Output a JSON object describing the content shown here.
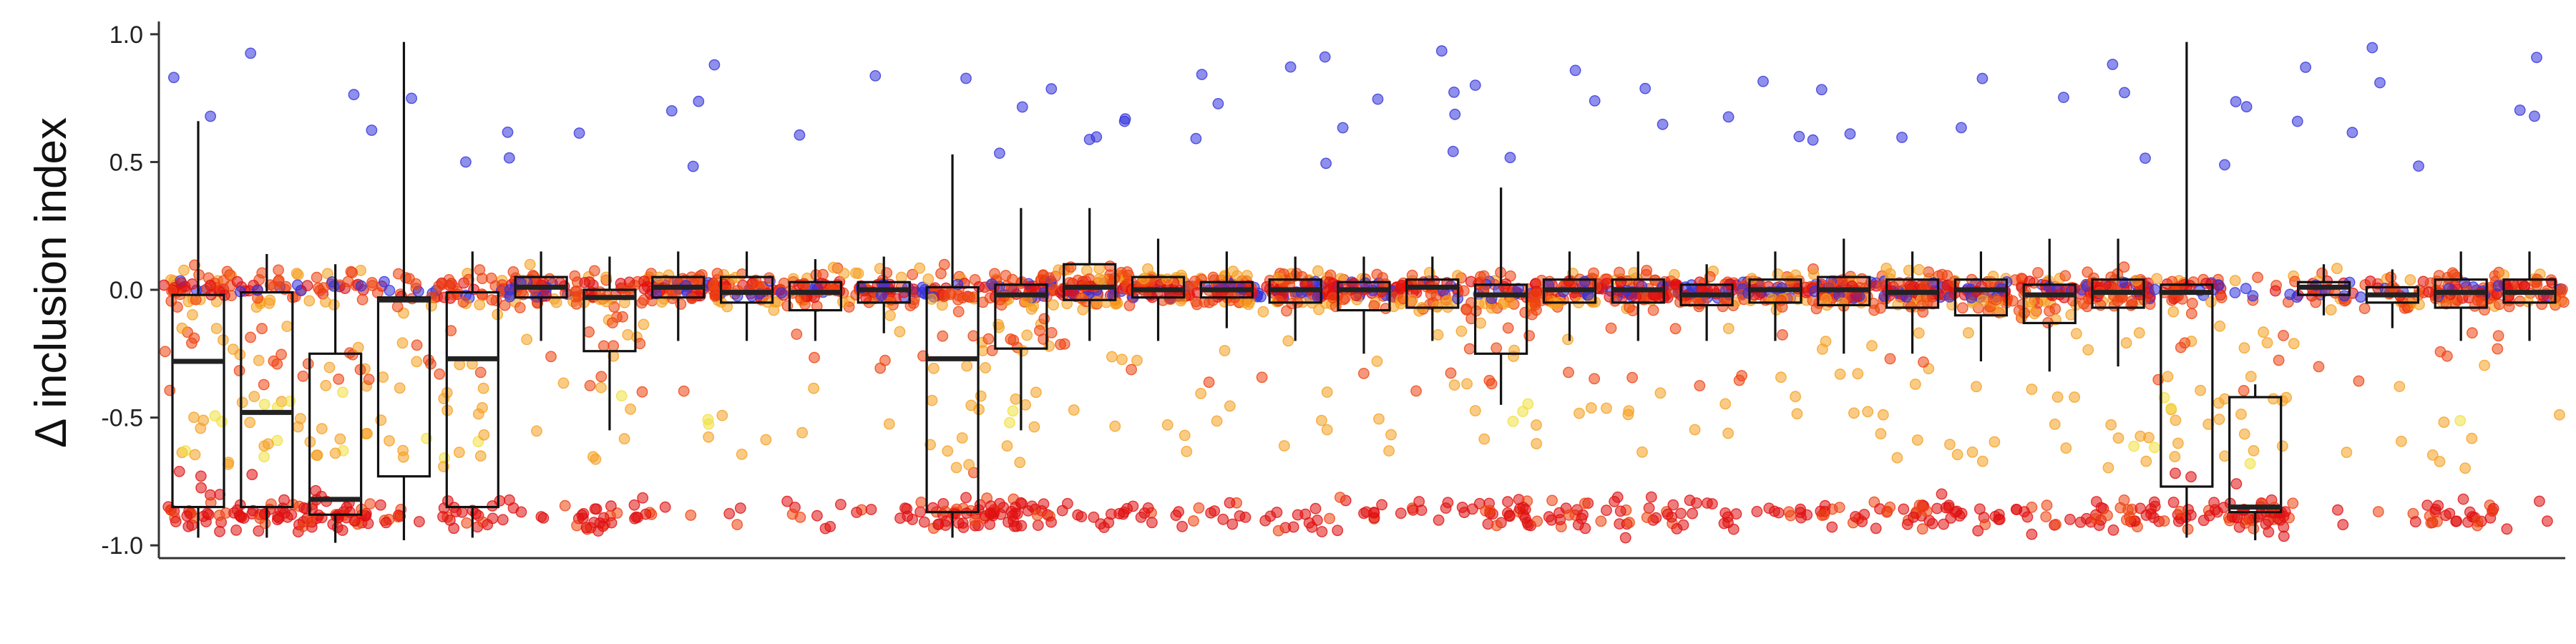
{
  "chart_data": {
    "type": "box-jitter",
    "ylabel": "Δ inclusion index",
    "xlabel": "",
    "ylim": [
      -1.05,
      1.05
    ],
    "yticks": [
      {
        "value": 1.0,
        "label": "1.0"
      },
      {
        "value": 0.5,
        "label": "0.5"
      },
      {
        "value": 0.0,
        "label": "0.0"
      },
      {
        "value": -0.5,
        "label": "-0.5"
      },
      {
        "value": -1.0,
        "label": "-1.0"
      }
    ],
    "grid": false,
    "point_colors": {
      "strong_positive": "#3333dd",
      "positive": "#33aaee",
      "neutral": "#f0e040",
      "mild_negative": "#f5a020",
      "negative": "#ee4411",
      "strong_negative": "#e01010"
    },
    "groups": [
      {
        "q1": -0.85,
        "median": -0.28,
        "q3": -0.02,
        "whisker_low": -0.97,
        "whisker_high": 0.66,
        "n_core": 60,
        "n_low": 22
      },
      {
        "q1": -0.85,
        "median": -0.48,
        "q3": -0.01,
        "whisker_low": -0.97,
        "whisker_high": 0.14,
        "n_core": 45,
        "n_low": 30
      },
      {
        "q1": -0.88,
        "median": -0.82,
        "q3": -0.25,
        "whisker_low": -0.99,
        "whisker_high": 0.1,
        "n_core": 35,
        "n_low": 40
      },
      {
        "q1": -0.73,
        "median": -0.04,
        "q3": -0.03,
        "whisker_low": -0.98,
        "whisker_high": 0.97,
        "n_core": 30,
        "n_low": 10
      },
      {
        "q1": -0.85,
        "median": -0.27,
        "q3": -0.01,
        "whisker_low": -0.97,
        "whisker_high": 0.15,
        "n_core": 45,
        "n_low": 20
      },
      {
        "q1": -0.03,
        "median": 0.01,
        "q3": 0.05,
        "whisker_low": -0.2,
        "whisker_high": 0.15,
        "n_core": 55,
        "n_low": 6
      },
      {
        "q1": -0.24,
        "median": -0.03,
        "q3": 0.0,
        "whisker_low": -0.55,
        "whisker_high": 0.13,
        "n_core": 50,
        "n_low": 25
      },
      {
        "q1": -0.03,
        "median": 0.01,
        "q3": 0.05,
        "whisker_low": -0.2,
        "whisker_high": 0.15,
        "n_core": 60,
        "n_low": 5
      },
      {
        "q1": -0.05,
        "median": -0.01,
        "q3": 0.05,
        "whisker_low": -0.2,
        "whisker_high": 0.15,
        "n_core": 55,
        "n_low": 3
      },
      {
        "q1": -0.08,
        "median": -0.01,
        "q3": 0.03,
        "whisker_low": -0.2,
        "whisker_high": 0.12,
        "n_core": 50,
        "n_low": 8
      },
      {
        "q1": -0.05,
        "median": 0.0,
        "q3": 0.03,
        "whisker_low": -0.17,
        "whisker_high": 0.13,
        "n_core": 50,
        "n_low": 8
      },
      {
        "q1": -0.87,
        "median": -0.27,
        "q3": 0.01,
        "whisker_low": -0.97,
        "whisker_high": 0.53,
        "n_core": 50,
        "n_low": 30
      },
      {
        "q1": -0.23,
        "median": -0.02,
        "q3": 0.02,
        "whisker_low": -0.55,
        "whisker_high": 0.32,
        "n_core": 70,
        "n_low": 35
      },
      {
        "q1": -0.04,
        "median": 0.01,
        "q3": 0.1,
        "whisker_low": -0.2,
        "whisker_high": 0.32,
        "n_core": 75,
        "n_low": 12
      },
      {
        "q1": -0.03,
        "median": 0.0,
        "q3": 0.05,
        "whisker_low": -0.2,
        "whisker_high": 0.2,
        "n_core": 75,
        "n_low": 10
      },
      {
        "q1": -0.03,
        "median": 0.0,
        "q3": 0.03,
        "whisker_low": -0.15,
        "whisker_high": 0.15,
        "n_core": 70,
        "n_low": 10
      },
      {
        "q1": -0.05,
        "median": 0.0,
        "q3": 0.04,
        "whisker_low": -0.2,
        "whisker_high": 0.13,
        "n_core": 70,
        "n_low": 14
      },
      {
        "q1": -0.08,
        "median": 0.0,
        "q3": 0.03,
        "whisker_low": -0.25,
        "whisker_high": 0.13,
        "n_core": 60,
        "n_low": 10
      },
      {
        "q1": -0.07,
        "median": 0.01,
        "q3": 0.04,
        "whisker_low": -0.2,
        "whisker_high": 0.13,
        "n_core": 55,
        "n_low": 10
      },
      {
        "q1": -0.25,
        "median": -0.02,
        "q3": 0.02,
        "whisker_low": -0.45,
        "whisker_high": 0.4,
        "n_core": 60,
        "n_low": 25
      },
      {
        "q1": -0.05,
        "median": 0.0,
        "q3": 0.04,
        "whisker_low": -0.2,
        "whisker_high": 0.15,
        "n_core": 65,
        "n_low": 18
      },
      {
        "q1": -0.05,
        "median": 0.0,
        "q3": 0.04,
        "whisker_low": -0.2,
        "whisker_high": 0.15,
        "n_core": 65,
        "n_low": 18
      },
      {
        "q1": -0.06,
        "median": -0.02,
        "q3": 0.02,
        "whisker_low": -0.2,
        "whisker_high": 0.1,
        "n_core": 60,
        "n_low": 15
      },
      {
        "q1": -0.05,
        "median": 0.0,
        "q3": 0.04,
        "whisker_low": -0.2,
        "whisker_high": 0.15,
        "n_core": 65,
        "n_low": 10
      },
      {
        "q1": -0.06,
        "median": 0.0,
        "q3": 0.05,
        "whisker_low": -0.25,
        "whisker_high": 0.2,
        "n_core": 70,
        "n_low": 15
      },
      {
        "q1": -0.07,
        "median": -0.01,
        "q3": 0.04,
        "whisker_low": -0.25,
        "whisker_high": 0.15,
        "n_core": 70,
        "n_low": 22
      },
      {
        "q1": -0.1,
        "median": 0.0,
        "q3": 0.04,
        "whisker_low": -0.28,
        "whisker_high": 0.15,
        "n_core": 65,
        "n_low": 15
      },
      {
        "q1": -0.13,
        "median": -0.02,
        "q3": 0.02,
        "whisker_low": -0.32,
        "whisker_high": 0.2,
        "n_core": 55,
        "n_low": 12
      },
      {
        "q1": -0.07,
        "median": -0.01,
        "q3": 0.04,
        "whisker_low": -0.3,
        "whisker_high": 0.2,
        "n_core": 70,
        "n_low": 25
      },
      {
        "q1": -0.77,
        "median": -0.01,
        "q3": 0.02,
        "whisker_low": -0.97,
        "whisker_high": 0.97,
        "n_core": 50,
        "n_low": 20
      },
      {
        "q1": -0.87,
        "median": -0.85,
        "q3": -0.42,
        "whisker_low": -0.98,
        "whisker_high": -0.37,
        "n_core": 15,
        "n_low": 40
      },
      {
        "q1": -0.02,
        "median": 0.01,
        "q3": 0.03,
        "whisker_low": -0.1,
        "whisker_high": 0.1,
        "n_core": 30,
        "n_low": 3
      },
      {
        "q1": -0.05,
        "median": -0.02,
        "q3": 0.01,
        "whisker_low": -0.15,
        "whisker_high": 0.08,
        "n_core": 30,
        "n_low": 3
      },
      {
        "q1": -0.07,
        "median": -0.01,
        "q3": 0.04,
        "whisker_low": -0.2,
        "whisker_high": 0.15,
        "n_core": 60,
        "n_low": 25
      },
      {
        "q1": -0.05,
        "median": -0.01,
        "q3": 0.04,
        "whisker_low": -0.2,
        "whisker_high": 0.15,
        "n_core": 50,
        "n_low": 3
      }
    ]
  }
}
